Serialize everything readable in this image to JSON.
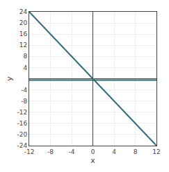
{
  "chart_data": {
    "type": "line",
    "x": [
      -12,
      12
    ],
    "series": [
      {
        "color": "#2e6b7a",
        "values": [
          -0.5,
          -0.5
        ]
      },
      {
        "color": "#2e6b7a",
        "values": [
          24,
          -24
        ]
      }
    ],
    "xlabel": "x",
    "ylabel": "y",
    "xlim": [
      -12,
      12
    ],
    "xticks": [
      -12,
      -8,
      -4,
      0,
      4,
      8,
      12
    ],
    "ylim": [
      -24,
      24
    ],
    "yticks": [
      -24,
      -20,
      -16,
      -12,
      -8,
      -4,
      4,
      8,
      12,
      16,
      20,
      24
    ],
    "grid": true
  }
}
